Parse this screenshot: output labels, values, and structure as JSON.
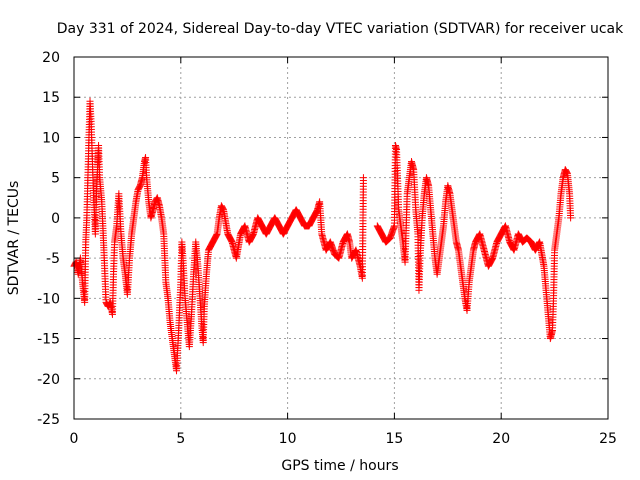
{
  "chart_data": {
    "type": "scatter",
    "title": "Day 331 of 2024, Sidereal Day-to-day VTEC variation (SDTVAR) for receiver ucak",
    "xlabel": "GPS time / hours",
    "ylabel": "SDTVAR / TECUs",
    "xlim": [
      0,
      25
    ],
    "ylim": [
      -25,
      20
    ],
    "xticks": [
      "0",
      "5",
      "10",
      "15",
      "20",
      "25"
    ],
    "yticks": [
      "-25",
      "-20",
      "-15",
      "-10",
      "-5",
      "0",
      "5",
      "10",
      "15",
      "20"
    ],
    "grid": true,
    "marker": "+",
    "color": "#ff0000",
    "series": [
      {
        "name": "SDTVAR",
        "points": [
          [
            0.0,
            -6
          ],
          [
            0.1,
            -5.5
          ],
          [
            0.2,
            -7
          ],
          [
            0.3,
            -5
          ],
          [
            0.4,
            -8
          ],
          [
            0.5,
            -10.5
          ],
          [
            0.55,
            -3
          ],
          [
            0.6,
            0
          ],
          [
            0.65,
            5
          ],
          [
            0.7,
            10
          ],
          [
            0.75,
            14.5
          ],
          [
            0.8,
            12
          ],
          [
            0.85,
            8
          ],
          [
            0.9,
            4
          ],
          [
            0.95,
            1
          ],
          [
            1.0,
            -2
          ],
          [
            1.05,
            3
          ],
          [
            1.1,
            6
          ],
          [
            1.15,
            9
          ],
          [
            1.2,
            5
          ],
          [
            1.3,
            2
          ],
          [
            1.35,
            -1
          ],
          [
            1.4,
            -4
          ],
          [
            1.5,
            -10.5
          ],
          [
            1.6,
            -11
          ],
          [
            1.7,
            -10.5
          ],
          [
            1.8,
            -12
          ],
          [
            1.85,
            -7
          ],
          [
            1.9,
            -3
          ],
          [
            2.0,
            -1
          ],
          [
            2.1,
            3
          ],
          [
            2.2,
            -2
          ],
          [
            2.3,
            -5
          ],
          [
            2.4,
            -7
          ],
          [
            2.5,
            -9.5
          ],
          [
            2.6,
            -5
          ],
          [
            2.7,
            -2
          ],
          [
            2.8,
            0
          ],
          [
            2.9,
            2
          ],
          [
            3.0,
            3.5
          ],
          [
            3.1,
            4
          ],
          [
            3.2,
            5
          ],
          [
            3.3,
            7
          ],
          [
            3.35,
            7.5
          ],
          [
            3.4,
            5
          ],
          [
            3.5,
            2
          ],
          [
            3.6,
            0
          ],
          [
            3.7,
            1
          ],
          [
            3.8,
            2
          ],
          [
            3.9,
            2.5
          ],
          [
            4.0,
            1.5
          ],
          [
            4.1,
            0
          ],
          [
            4.2,
            -2
          ],
          [
            4.25,
            -5
          ],
          [
            4.3,
            -8
          ],
          [
            4.4,
            -10
          ],
          [
            4.5,
            -13
          ],
          [
            4.6,
            -15
          ],
          [
            4.7,
            -17
          ],
          [
            4.8,
            -19
          ],
          [
            4.9,
            -14
          ],
          [
            5.0,
            -8
          ],
          [
            5.05,
            -3
          ],
          [
            5.1,
            -5
          ],
          [
            5.2,
            -10
          ],
          [
            5.3,
            -13
          ],
          [
            5.4,
            -16
          ],
          [
            5.5,
            -12
          ],
          [
            5.6,
            -7
          ],
          [
            5.7,
            -3
          ],
          [
            5.8,
            -6
          ],
          [
            5.9,
            -10
          ],
          [
            6.0,
            -14
          ],
          [
            6.05,
            -15.5
          ],
          [
            6.1,
            -11
          ],
          [
            6.2,
            -7
          ],
          [
            6.3,
            -4
          ],
          [
            6.5,
            -3
          ],
          [
            6.7,
            -2
          ],
          [
            6.8,
            0
          ],
          [
            6.9,
            1.5
          ],
          [
            7.0,
            1
          ],
          [
            7.2,
            -2
          ],
          [
            7.4,
            -3
          ],
          [
            7.6,
            -5
          ],
          [
            7.8,
            -2
          ],
          [
            8.0,
            -1
          ],
          [
            8.2,
            -3
          ],
          [
            8.4,
            -2
          ],
          [
            8.6,
            0
          ],
          [
            8.8,
            -1
          ],
          [
            9.0,
            -2
          ],
          [
            9.2,
            -1
          ],
          [
            9.4,
            0
          ],
          [
            9.6,
            -1
          ],
          [
            9.8,
            -2
          ],
          [
            10.0,
            -1
          ],
          [
            10.2,
            0
          ],
          [
            10.4,
            1
          ],
          [
            10.6,
            0
          ],
          [
            10.8,
            -1
          ],
          [
            11.0,
            -1
          ],
          [
            11.2,
            0
          ],
          [
            11.4,
            1
          ],
          [
            11.5,
            2
          ],
          [
            11.6,
            -2
          ],
          [
            11.8,
            -4
          ],
          [
            12.0,
            -3
          ],
          [
            12.2,
            -4.5
          ],
          [
            12.4,
            -5
          ],
          [
            12.6,
            -3
          ],
          [
            12.8,
            -2
          ],
          [
            12.9,
            -3
          ],
          [
            13.0,
            -5
          ],
          [
            13.2,
            -4
          ],
          [
            13.4,
            -6
          ],
          [
            13.5,
            -7.5
          ],
          [
            13.55,
            5
          ],
          [
            14.2,
            -1
          ],
          [
            14.4,
            -2
          ],
          [
            14.6,
            -3
          ],
          [
            14.8,
            -2.5
          ],
          [
            15.0,
            -1
          ],
          [
            15.05,
            9
          ],
          [
            15.1,
            8.5
          ],
          [
            15.2,
            1
          ],
          [
            15.3,
            -1
          ],
          [
            15.4,
            -3
          ],
          [
            15.5,
            -5.5
          ],
          [
            15.6,
            3
          ],
          [
            15.7,
            5
          ],
          [
            15.8,
            7
          ],
          [
            15.9,
            6
          ],
          [
            16.0,
            1
          ],
          [
            16.1,
            -2
          ],
          [
            16.15,
            -9
          ],
          [
            16.2,
            -5
          ],
          [
            16.3,
            0
          ],
          [
            16.4,
            3
          ],
          [
            16.5,
            5
          ],
          [
            16.6,
            4
          ],
          [
            16.7,
            1
          ],
          [
            16.8,
            -2
          ],
          [
            16.9,
            -5
          ],
          [
            17.0,
            -7
          ],
          [
            17.1,
            -5
          ],
          [
            17.2,
            -3
          ],
          [
            17.3,
            -1
          ],
          [
            17.4,
            2
          ],
          [
            17.5,
            4
          ],
          [
            17.6,
            3
          ],
          [
            17.7,
            1
          ],
          [
            17.8,
            -1
          ],
          [
            17.9,
            -3
          ],
          [
            18.0,
            -4
          ],
          [
            18.1,
            -6
          ],
          [
            18.2,
            -8
          ],
          [
            18.3,
            -10
          ],
          [
            18.4,
            -11.5
          ],
          [
            18.5,
            -8
          ],
          [
            18.6,
            -6
          ],
          [
            18.7,
            -4
          ],
          [
            18.8,
            -3
          ],
          [
            19.0,
            -2
          ],
          [
            19.2,
            -4
          ],
          [
            19.4,
            -6
          ],
          [
            19.6,
            -5
          ],
          [
            19.8,
            -3
          ],
          [
            20.0,
            -2
          ],
          [
            20.2,
            -1
          ],
          [
            20.4,
            -3
          ],
          [
            20.6,
            -4
          ],
          [
            20.8,
            -2
          ],
          [
            21.0,
            -3
          ],
          [
            21.2,
            -2.5
          ],
          [
            21.4,
            -3
          ],
          [
            21.6,
            -4
          ],
          [
            21.8,
            -3
          ],
          [
            22.0,
            -6
          ],
          [
            22.1,
            -9
          ],
          [
            22.2,
            -12
          ],
          [
            22.3,
            -15
          ],
          [
            22.4,
            -14
          ],
          [
            22.45,
            -10
          ],
          [
            22.5,
            -4
          ],
          [
            22.6,
            -2
          ],
          [
            22.7,
            0
          ],
          [
            22.8,
            3
          ],
          [
            22.9,
            5
          ],
          [
            23.0,
            6
          ],
          [
            23.1,
            5.5
          ],
          [
            23.2,
            3
          ],
          [
            23.25,
            0
          ]
        ]
      }
    ]
  }
}
